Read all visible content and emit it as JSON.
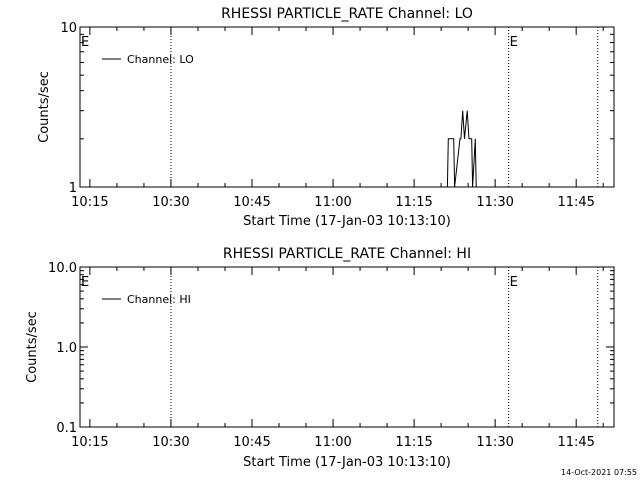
{
  "footer": {
    "timestamp": "14-Oct-2021 07:55"
  },
  "colors": {
    "background": "#ffffff",
    "foreground": "#000000"
  },
  "chart_data": [
    {
      "type": "line",
      "title": "RHESSI PARTICLE_RATE Channel: LO",
      "xlabel": "Start Time (17-Jan-03 10:13:10)",
      "ylabel": "Counts/sec",
      "yscale": "log",
      "ylim": [
        1,
        10
      ],
      "xlim": [
        "10:13:10",
        "11:52:00"
      ],
      "ytick_labels": [
        "1",
        "10"
      ],
      "ytick_values": [
        1,
        10
      ],
      "xtick_labels": [
        "10:15",
        "10:30",
        "10:45",
        "11:00",
        "11:15",
        "11:30",
        "11:45"
      ],
      "grid": false,
      "legend": {
        "position": "top-left",
        "entries": [
          "Channel: LO"
        ]
      },
      "annotations": [
        {
          "text": "E",
          "at": "10:13:10"
        },
        {
          "text": "E",
          "at": "11:32:30"
        }
      ],
      "vlines": [
        "10:30:00",
        "11:32:30",
        "11:49:00"
      ],
      "series": [
        {
          "name": "Channel: LO",
          "x": [
            "11:21:10",
            "11:21:20",
            "11:22:20",
            "11:22:30",
            "11:23:30",
            "11:23:40",
            "11:24:00",
            "11:24:20",
            "11:24:50",
            "11:25:10",
            "11:25:40",
            "11:25:50",
            "11:26:20",
            "11:26:30"
          ],
          "y": [
            1,
            2,
            2,
            1,
            2,
            2,
            3,
            2,
            3,
            2,
            2,
            1,
            2,
            1
          ]
        }
      ]
    },
    {
      "type": "line",
      "title": "RHESSI PARTICLE_RATE Channel: HI",
      "xlabel": "Start Time (17-Jan-03 10:13:10)",
      "ylabel": "Counts/sec",
      "yscale": "log",
      "ylim": [
        0.1,
        10
      ],
      "xlim": [
        "10:13:10",
        "11:52:00"
      ],
      "ytick_labels": [
        "0.1",
        "1.0",
        "10.0"
      ],
      "ytick_values": [
        0.1,
        1,
        10
      ],
      "xtick_labels": [
        "10:15",
        "10:30",
        "10:45",
        "11:00",
        "11:15",
        "11:30",
        "11:45"
      ],
      "grid": false,
      "legend": {
        "position": "top-left",
        "entries": [
          "Channel: HI"
        ]
      },
      "annotations": [
        {
          "text": "E",
          "at": "10:13:10"
        },
        {
          "text": "E",
          "at": "11:32:30"
        }
      ],
      "vlines": [
        "10:30:00",
        "11:32:30",
        "11:49:00"
      ],
      "series": [
        {
          "name": "Channel: HI",
          "x": [],
          "y": []
        }
      ]
    }
  ]
}
